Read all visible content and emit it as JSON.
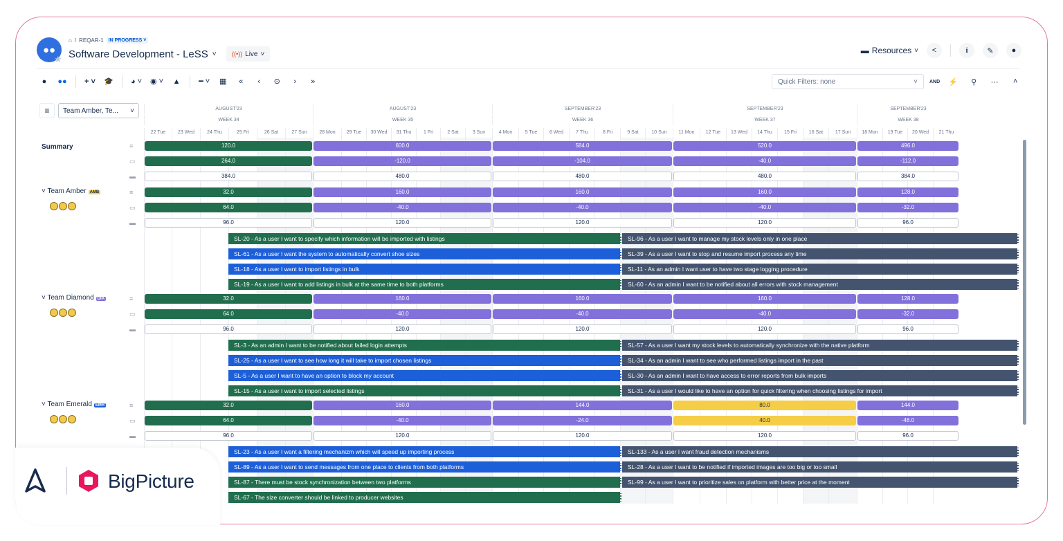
{
  "breadcrumb": {
    "project": "REQAR-1",
    "status": "IN PROGRESS"
  },
  "header": {
    "title": "Software Development - LeSS",
    "mode": "Live",
    "resources_label": "Resources"
  },
  "quick_filters": {
    "label": "Quick Filters: none",
    "and_label": "AND"
  },
  "team_select": "Team Amber, Te...",
  "months": [
    "AUGUST'23",
    "AUGUST'23",
    "SEPTEMBER'23",
    "SEPTEMBER'23",
    "SEPTEMBER'23"
  ],
  "weeks": [
    "WEEK 34",
    "WEEK 35",
    "WEEK 36",
    "WEEK 37",
    "WEEK 38"
  ],
  "days": [
    "22 Tue",
    "23 Wed",
    "24 Thu",
    "25 Fri",
    "26 Sat",
    "27 Sun",
    "28 Mon",
    "29 Tue",
    "30 Wed",
    "31 Thu",
    "1 Fri",
    "2 Sat",
    "3 Sun",
    "4 Mon",
    "5 Tue",
    "6 Wed",
    "7 Thu",
    "8 Fri",
    "9 Sat",
    "10 Sun",
    "11 Mon",
    "12 Tue",
    "13 Wed",
    "14 Thu",
    "15 Fri",
    "16 Sat",
    "17 Sun",
    "18 Mon",
    "19 Tue",
    "20 Wed",
    "21 Thu"
  ],
  "summary": {
    "label": "Summary",
    "row1": [
      "120.0",
      "600.0",
      "584.0",
      "520.0",
      "496.0"
    ],
    "row2": [
      "264.0",
      "-120.0",
      "-104.0",
      "-40.0",
      "-112.0"
    ],
    "row3": [
      "384.0",
      "480.0",
      "480.0",
      "480.0",
      "384.0"
    ]
  },
  "teams": [
    {
      "name": "Team Amber",
      "badge": "AMB",
      "row1": [
        "32.0",
        "160.0",
        "160.0",
        "160.0",
        "128.0"
      ],
      "row2": [
        "64.0",
        "-40.0",
        "-40.0",
        "-40.0",
        "-32.0"
      ],
      "row3": [
        "96.0",
        "120.0",
        "120.0",
        "120.0",
        "96.0"
      ],
      "left_tasks": [
        "SL-20 - As a user I want to specify which information will be imported with listings",
        "SL-61 - As a user I want the system to automatically convert shoe sizes",
        "SL-18 - As a user I want to import listings in bulk",
        "SL-19 - As a user I want to add listings in bulk at the same time to both platforms"
      ],
      "right_tasks": [
        "SL-96 - As a user I want to manage my stock levels only in one place",
        "SL-39 - As a user I want to stop and resume import process any time",
        "SL-11 - As an admin I want user to have two stage logging procedure",
        "SL-60 - As an admin I want to be notified about all errors with stock management"
      ]
    },
    {
      "name": "Team Diamond",
      "badge": "DIA",
      "row1": [
        "32.0",
        "160.0",
        "160.0",
        "160.0",
        "128.0"
      ],
      "row2": [
        "64.0",
        "-40.0",
        "-40.0",
        "-40.0",
        "-32.0"
      ],
      "row3": [
        "96.0",
        "120.0",
        "120.0",
        "120.0",
        "96.0"
      ],
      "left_tasks": [
        "SL-3 - As an admin I want to be notified about failed login attempts",
        "SL-25 - As a user I want to see how long it will take to import chosen listings",
        "SL-5 - As a user I want to have an option to block my account",
        "SL-15 - As a user I want to import selected listings"
      ],
      "right_tasks": [
        "SL-57 - As a user I want my stock levels to automatically synchronize with the native platform",
        "SL-34 - As an admin I want to see who performed listings import in the past",
        "SL-30 - As an admin I want to have access to error reports from bulk imports",
        "SL-31 - As a user I would like to have an option for quick filtering when choosing listings for import"
      ]
    },
    {
      "name": "Team Emerald",
      "badge": "EMR",
      "row1": [
        "32.0",
        "160.0",
        "144.0",
        "80.0",
        "144.0"
      ],
      "row2": [
        "64.0",
        "-40.0",
        "-24.0",
        "40.0",
        "-48.0"
      ],
      "row3": [
        "96.0",
        "120.0",
        "120.0",
        "120.0",
        "96.0"
      ],
      "left_tasks": [
        "SL-23 - As a user I want a filtering mechanizm which will speed up importing process",
        "SL-89 - As a user I want to send messages from one place to clients from both platforms",
        "SL-87 - There must be stock synchronization between two platforms",
        "SL-67 - The size converter should be linked to producer websites"
      ],
      "right_tasks": [
        "SL-133 - As a user I want fraud detection mechanisms",
        "SL-28 - As a user I want to be notified if imported images are too big or too small",
        "SL-99 - As a user I want to prioritize sales on platform with better price at the moment"
      ]
    }
  ],
  "brand": {
    "name": "BigPicture"
  },
  "colors": {
    "green": "#216e4e",
    "purple": "#8270db",
    "blue": "#1d5fd8",
    "slate": "#44546f",
    "yellow": "#f5cd47",
    "accent": "#0c66e4"
  }
}
